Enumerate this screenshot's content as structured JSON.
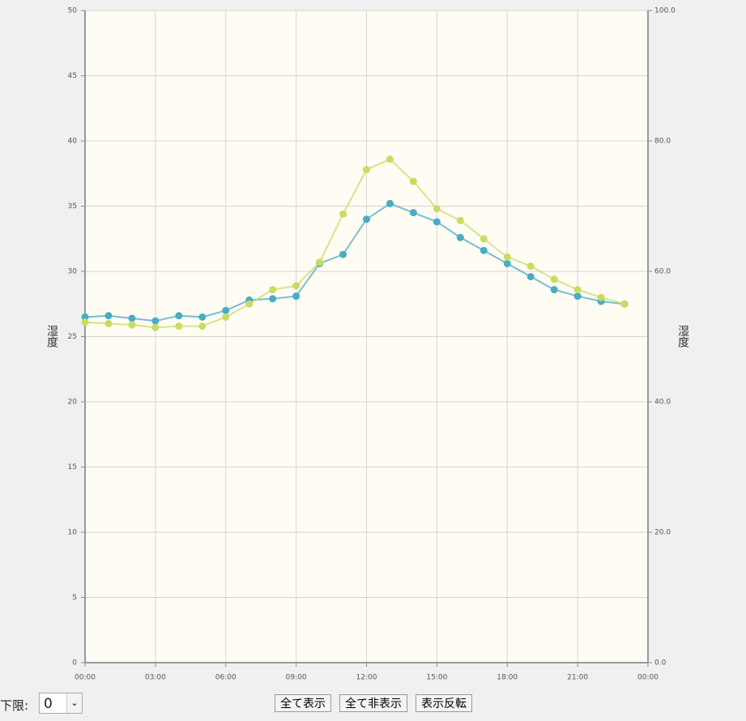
{
  "chart_data": {
    "type": "line",
    "y_label": "湿度",
    "y2_label": "湿度",
    "x": [
      0,
      1,
      2,
      3,
      4,
      5,
      6,
      7,
      8,
      9,
      10,
      11,
      12,
      13,
      14,
      15,
      16,
      17,
      18,
      19,
      20,
      21,
      22,
      23
    ],
    "xlim": [
      0,
      24
    ],
    "xticks": [
      {
        "value": 0,
        "label": "00:00"
      },
      {
        "value": 3,
        "label": "03:00"
      },
      {
        "value": 6,
        "label": "06:00"
      },
      {
        "value": 9,
        "label": "09:00"
      },
      {
        "value": 12,
        "label": "12:00"
      },
      {
        "value": 15,
        "label": "15:00"
      },
      {
        "value": 18,
        "label": "18:00"
      },
      {
        "value": 21,
        "label": "21:00"
      },
      {
        "value": 24,
        "label": "00:00"
      }
    ],
    "ylim": [
      0,
      50
    ],
    "yticks": [
      0,
      5,
      10,
      15,
      20,
      25,
      30,
      35,
      40,
      45,
      50
    ],
    "y2lim": [
      0,
      100
    ],
    "y2ticks": [
      {
        "value": 0,
        "label": "0.0"
      },
      {
        "value": 20,
        "label": "20.0"
      },
      {
        "value": 40,
        "label": "40.0"
      },
      {
        "value": 60,
        "label": "60.0"
      },
      {
        "value": 80,
        "label": "80.0"
      },
      {
        "value": 100,
        "label": "100.0"
      }
    ],
    "grid": true,
    "series": [
      {
        "color": "#4aabc4",
        "values": [
          26.5,
          26.6,
          26.4,
          26.2,
          26.6,
          26.5,
          27.0,
          27.8,
          27.9,
          28.1,
          30.6,
          31.3,
          34.0,
          35.2,
          34.5,
          33.8,
          32.6,
          31.6,
          30.6,
          29.6,
          28.6,
          28.1,
          27.7,
          27.5
        ]
      },
      {
        "color": "#c8dc62",
        "values": [
          26.1,
          26.0,
          25.9,
          25.7,
          25.8,
          25.8,
          26.5,
          27.5,
          28.6,
          28.9,
          30.7,
          34.4,
          37.8,
          38.6,
          36.9,
          34.8,
          33.9,
          32.5,
          31.1,
          30.4,
          29.4,
          28.6,
          28.0,
          27.5
        ]
      }
    ]
  },
  "controls": {
    "lower_limit_label": "下限:",
    "lower_limit_value": 0,
    "buttons": [
      "全て表示",
      "全て非表示",
      "表示反転"
    ]
  }
}
